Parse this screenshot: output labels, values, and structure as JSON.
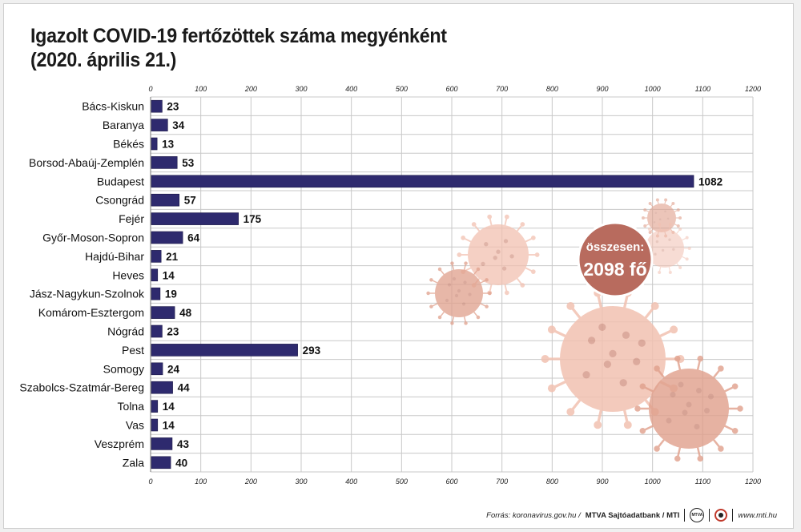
{
  "title": {
    "line1": "Igazolt COVID-19 fertőzöttek száma megyénként",
    "line2": "(2020. április 21.)"
  },
  "total_badge": {
    "label": "összesen:",
    "value": "2098 fő",
    "color": "#b86b5e"
  },
  "footer": {
    "source": "Forrás: koronavirus.gov.hu /",
    "brand": "MTVA Sajtóadatbank / MTI",
    "logo_text": "MTVA",
    "website": "www.mti.hu"
  },
  "colors": {
    "bar": "#2e2a6e",
    "grid": "#c8c8c8",
    "virus_light": "#f2c1b1",
    "virus_mid": "#e0a08c",
    "virus_dark": "#c07e6d"
  },
  "chart_data": {
    "type": "bar",
    "orientation": "horizontal",
    "categories": [
      "Bács-Kiskun",
      "Baranya",
      "Békés",
      "Borsod-Abaúj-Zemplén",
      "Budapest",
      "Csongrád",
      "Fejér",
      "Győr-Moson-Sopron",
      "Hajdú-Bihar",
      "Heves",
      "Jász-Nagykun-Szolnok",
      "Komárom-Esztergom",
      "Nógrád",
      "Pest",
      "Somogy",
      "Szabolcs-Szatmár-Bereg",
      "Tolna",
      "Vas",
      "Veszprém",
      "Zala"
    ],
    "values": [
      23,
      34,
      13,
      53,
      1082,
      57,
      175,
      64,
      21,
      14,
      19,
      48,
      23,
      293,
      24,
      44,
      14,
      14,
      43,
      40
    ],
    "xlim": [
      0,
      1200
    ],
    "xticks": [
      0,
      100,
      200,
      300,
      400,
      500,
      600,
      700,
      800,
      900,
      1000,
      1100,
      1200
    ],
    "grid": true,
    "data_labels": true,
    "title": "Igazolt COVID-19 fertőzöttek száma megyénként"
  }
}
